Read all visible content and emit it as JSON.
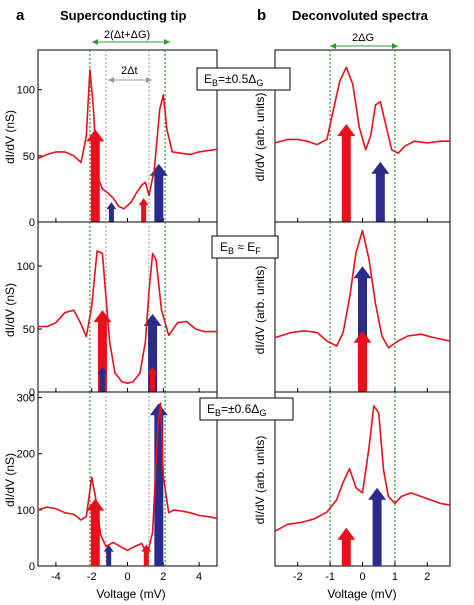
{
  "figure": {
    "panel_a_letter": "a",
    "panel_a_title": "Superconducting tip",
    "panel_b_letter": "b",
    "panel_b_title": "Deconvoluted spectra",
    "annot_a_gap_total": "2(Δt+ΔG)",
    "annot_a_gap_tip": "2Δt",
    "annot_b_gap": "2ΔG",
    "left_ylabel": "dI/dV (nS)",
    "right_ylabel": "dI/dV (arb. units)",
    "xlabel": "Voltage (mV)"
  },
  "colors": {
    "curve": "#e8111b",
    "arrow_red": "#e8111b",
    "arrow_blue": "#2b2b8c",
    "guide_green": "#2f9a2f",
    "guide_gray": "#9a9a9a"
  },
  "chart_data": [
    {
      "type": "line",
      "panel": "a-top",
      "ylabel": "dI/dV (nS)",
      "xlim": [
        -5,
        5
      ],
      "ylim": [
        0,
        130
      ],
      "yticks": [
        0,
        50,
        100
      ],
      "guides": [
        -2.1,
        -1.2,
        1.2,
        2.1
      ],
      "label": "EB=±0.5ΔG",
      "series": [
        {
          "x": [
            -5,
            -4.5,
            -4,
            -3.5,
            -3,
            -2.6,
            -2.3,
            -2.1,
            -1.9,
            -1.7,
            -1.4,
            -1.1,
            -0.8,
            -0.5,
            -0.2,
            0.2,
            0.5,
            0.8,
            1.0,
            1.2,
            1.5,
            1.8,
            2.0,
            2.2,
            2.5,
            3,
            3.5,
            4,
            4.5,
            5
          ],
          "y": [
            48,
            51,
            53,
            53,
            50,
            45,
            65,
            115,
            85,
            35,
            25,
            22,
            18,
            12,
            10,
            15,
            22,
            28,
            30,
            20,
            40,
            85,
            96,
            70,
            53,
            52,
            51,
            53,
            54,
            55
          ]
        }
      ],
      "arrows": [
        {
          "x": -1.8,
          "from": 0,
          "to": 70,
          "color": "red",
          "size": "large"
        },
        {
          "x": -0.9,
          "from": 0,
          "to": 15,
          "color": "blue",
          "size": "small"
        },
        {
          "x": 0.9,
          "from": 0,
          "to": 18,
          "color": "red",
          "size": "small"
        },
        {
          "x": 1.75,
          "from": 0,
          "to": 44,
          "color": "blue",
          "size": "large"
        }
      ]
    },
    {
      "type": "line",
      "panel": "a-middle",
      "ylabel": "dI/dV (nS)",
      "xlim": [
        -5,
        5
      ],
      "ylim": [
        0,
        135
      ],
      "yticks": [
        0,
        50,
        100
      ],
      "guides": [
        -2.1,
        -1.2,
        1.2,
        2.1
      ],
      "label": "EB ≈ EF",
      "series": [
        {
          "x": [
            -5,
            -4.5,
            -4,
            -3.5,
            -3,
            -2.6,
            -2.3,
            -2.0,
            -1.7,
            -1.4,
            -1.2,
            -1.0,
            -0.7,
            -0.3,
            0,
            0.3,
            0.7,
            1.0,
            1.2,
            1.4,
            1.6,
            1.9,
            2.3,
            2.8,
            3.3,
            3.8,
            4.3,
            5
          ],
          "y": [
            52,
            52,
            55,
            63,
            65,
            54,
            44,
            68,
            112,
            110,
            75,
            40,
            15,
            8,
            7,
            8,
            15,
            40,
            80,
            110,
            105,
            65,
            45,
            55,
            56,
            50,
            48,
            48
          ]
        }
      ],
      "arrows": [
        {
          "x": -1.4,
          "from": 0,
          "to": 65,
          "color": "red",
          "size": "large"
        },
        {
          "x": -1.4,
          "from": 0,
          "to": 20,
          "color": "blue",
          "size": "small"
        },
        {
          "x": 1.4,
          "from": 0,
          "to": 62,
          "color": "blue",
          "size": "large"
        },
        {
          "x": 1.4,
          "from": 0,
          "to": 20,
          "color": "red",
          "size": "small"
        }
      ]
    },
    {
      "type": "line",
      "panel": "a-bottom",
      "ylabel": "dI/dV (nS)",
      "xlim": [
        -5,
        5
      ],
      "ylim": [
        0,
        310
      ],
      "yticks": [
        0,
        100,
        200,
        300
      ],
      "guides": [
        -2.1,
        -1.2,
        1.2,
        2.1
      ],
      "label": "EB=±0.6ΔG",
      "series": [
        {
          "x": [
            -5,
            -4.5,
            -4,
            -3.5,
            -3,
            -2.6,
            -2.3,
            -2.0,
            -1.8,
            -1.5,
            -1.2,
            -0.8,
            -0.4,
            0,
            0.4,
            0.8,
            1.1,
            1.4,
            1.7,
            1.85,
            2.0,
            2.3,
            2.6,
            3,
            3.5,
            4,
            4.5,
            5
          ],
          "y": [
            100,
            105,
            102,
            95,
            92,
            82,
            88,
            158,
            125,
            55,
            35,
            42,
            35,
            28,
            35,
            40,
            20,
            60,
            250,
            290,
            160,
            95,
            100,
            98,
            95,
            90,
            88,
            85
          ]
        }
      ],
      "arrows": [
        {
          "x": -1.8,
          "from": 0,
          "to": 120,
          "color": "red",
          "size": "large"
        },
        {
          "x": -1.05,
          "from": 0,
          "to": 38,
          "color": "blue",
          "size": "small"
        },
        {
          "x": 1.05,
          "from": 0,
          "to": 38,
          "color": "red",
          "size": "small"
        },
        {
          "x": 1.75,
          "from": 0,
          "to": 290,
          "color": "blue",
          "size": "large"
        }
      ]
    },
    {
      "type": "line",
      "panel": "b-top",
      "ylabel": "dI/dV (arb. units)",
      "xlim": [
        -2.7,
        2.7
      ],
      "ylim": [
        0,
        1
      ],
      "yticks": [],
      "guides": [
        -1,
        1
      ],
      "series": [
        {
          "x": [
            -2.7,
            -2.3,
            -2.0,
            -1.7,
            -1.4,
            -1.1,
            -0.9,
            -0.7,
            -0.5,
            -0.3,
            -0.1,
            0.1,
            0.25,
            0.4,
            0.55,
            0.7,
            0.9,
            1.1,
            1.3,
            1.6,
            2.0,
            2.4,
            2.7
          ],
          "y": [
            0.46,
            0.48,
            0.48,
            0.47,
            0.45,
            0.48,
            0.65,
            0.82,
            0.9,
            0.8,
            0.55,
            0.42,
            0.5,
            0.68,
            0.7,
            0.58,
            0.42,
            0.4,
            0.44,
            0.47,
            0.46,
            0.47,
            0.47
          ]
        }
      ],
      "arrows": [
        {
          "x": -0.5,
          "from": 0,
          "to": 0.57,
          "color": "red",
          "size": "large"
        },
        {
          "x": 0.55,
          "from": 0,
          "to": 0.35,
          "color": "blue",
          "size": "large"
        }
      ]
    },
    {
      "type": "line",
      "panel": "b-middle",
      "ylabel": "dI/dV (arb. units)",
      "xlim": [
        -2.7,
        2.7
      ],
      "ylim": [
        0,
        1
      ],
      "yticks": [],
      "guides": [
        -1,
        1
      ],
      "series": [
        {
          "x": [
            -2.7,
            -2.2,
            -1.8,
            -1.4,
            -1.1,
            -0.8,
            -0.6,
            -0.4,
            -0.2,
            0,
            0.2,
            0.4,
            0.6,
            0.8,
            1.1,
            1.4,
            1.8,
            2.2,
            2.7
          ],
          "y": [
            0.32,
            0.35,
            0.36,
            0.35,
            0.3,
            0.27,
            0.35,
            0.55,
            0.82,
            0.95,
            0.78,
            0.52,
            0.33,
            0.26,
            0.3,
            0.33,
            0.34,
            0.32,
            0.3
          ]
        }
      ],
      "arrows": [
        {
          "x": 0.0,
          "from": 0,
          "to": 0.74,
          "color": "blue",
          "size": "large"
        },
        {
          "x": 0.0,
          "from": 0,
          "to": 0.36,
          "color": "red",
          "size": "large"
        }
      ]
    },
    {
      "type": "line",
      "panel": "b-bottom",
      "ylabel": "dI/dV (arb. units)",
      "xlabel": "Voltage (mV)",
      "xlim": [
        -2.7,
        2.7
      ],
      "ylim": [
        0,
        1
      ],
      "xticks": [
        -2,
        -1,
        0,
        1,
        2
      ],
      "yticks": [],
      "guides": [
        -1,
        1
      ],
      "series": [
        {
          "x": [
            -2.7,
            -2.3,
            -1.9,
            -1.5,
            -1.1,
            -0.8,
            -0.6,
            -0.4,
            -0.2,
            0,
            0.2,
            0.35,
            0.5,
            0.65,
            0.8,
            1.0,
            1.2,
            1.5,
            1.8,
            2.1,
            2.4,
            2.7
          ],
          "y": [
            0.2,
            0.24,
            0.25,
            0.27,
            0.31,
            0.38,
            0.48,
            0.56,
            0.45,
            0.42,
            0.68,
            0.92,
            0.88,
            0.55,
            0.4,
            0.36,
            0.4,
            0.42,
            0.4,
            0.38,
            0.36,
            0.35
          ]
        }
      ],
      "arrows": [
        {
          "x": -0.5,
          "from": 0,
          "to": 0.22,
          "color": "red",
          "size": "large"
        },
        {
          "x": 0.45,
          "from": 0,
          "to": 0.45,
          "color": "blue",
          "size": "large"
        }
      ]
    }
  ]
}
